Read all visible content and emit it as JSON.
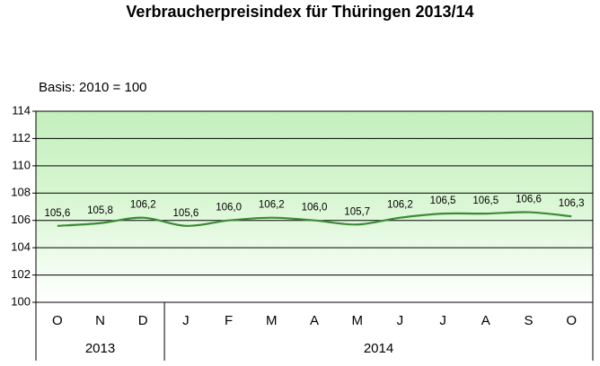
{
  "chart_data": {
    "type": "line",
    "title": "Verbraucherpreisindex für Thüringen 2013/14",
    "subtitle": "Basis: 2010 = 100",
    "categories": [
      "O",
      "N",
      "D",
      "J",
      "F",
      "M",
      "A",
      "M",
      "J",
      "J",
      "A",
      "S",
      "O"
    ],
    "groups": [
      {
        "label": "2013",
        "span": 3
      },
      {
        "label": "2014",
        "span": 10
      }
    ],
    "values": [
      105.6,
      105.8,
      106.2,
      105.6,
      106.0,
      106.2,
      106.0,
      105.7,
      106.2,
      106.5,
      106.5,
      106.6,
      106.3
    ],
    "value_labels": [
      "105,6",
      "105,8",
      "106,2",
      "105,6",
      "106,0",
      "106,2",
      "106,0",
      "105,7",
      "106,2",
      "106,5",
      "106,5",
      "106,6",
      "106,3"
    ],
    "color": "#3d8b37",
    "ylim": [
      100,
      114
    ],
    "yticks": [
      100,
      102,
      104,
      106,
      108,
      110,
      112,
      114
    ],
    "grid": true
  }
}
